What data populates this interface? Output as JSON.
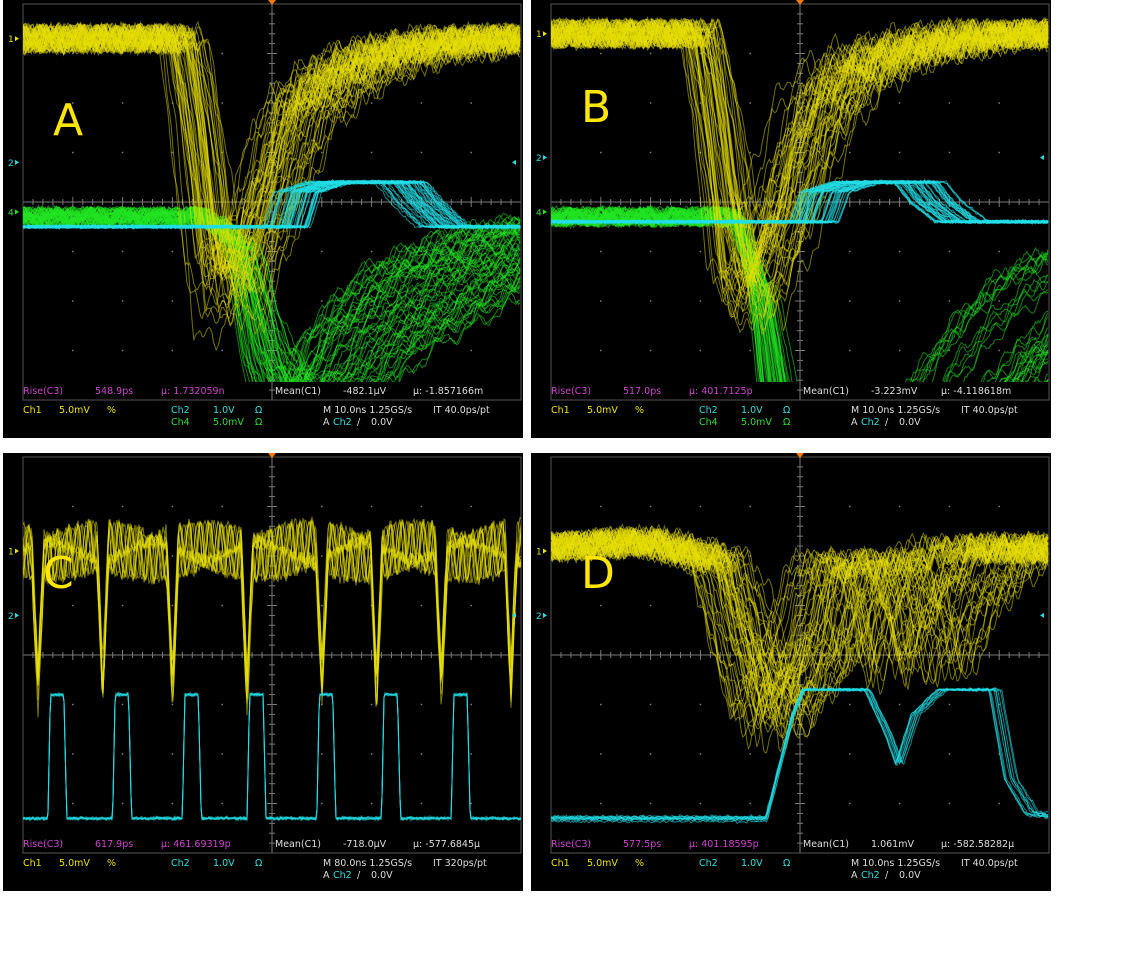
{
  "colors": {
    "ch1": "#e8e000",
    "ch2": "#22e0e8",
    "ch4": "#22e622",
    "measure": "#cc44cc",
    "grid": "#7a7a7a"
  },
  "panels": [
    {
      "id": "A",
      "letter": "A",
      "channels": [
        "1",
        "2",
        "4"
      ],
      "measure": {
        "label": "Rise(C3)",
        "value": "548.9ps",
        "mu_stat": "μ: 1.732059n",
        "mean_label": "Mean(C1)",
        "mean_value": "-482.1μV",
        "mean_mu": "μ: -1.857166m"
      },
      "ch1": {
        "label": "Ch1",
        "scale": "5.0mV",
        "flag": "%"
      },
      "ch2": {
        "label": "Ch2",
        "scale": "1.0V",
        "unit": "Ω"
      },
      "ch4": {
        "label": "Ch4",
        "scale": "5.0mV",
        "unit": "Ω"
      },
      "timebase": "M 10.0ns 1.25GS/s",
      "it": "IT 40.0ps/pt",
      "trigger": {
        "prefix": "A",
        "source": "Ch2",
        "slope": "/",
        "level": "0.0V"
      }
    },
    {
      "id": "B",
      "letter": "B",
      "channels": [
        "1",
        "2",
        "4"
      ],
      "measure": {
        "label": "Rise(C3)",
        "value": "517.0ps",
        "mu_stat": "μ: 401.7125p",
        "mean_label": "Mean(C1)",
        "mean_value": "-3.223mV",
        "mean_mu": "μ: -4.118618m"
      },
      "ch1": {
        "label": "Ch1",
        "scale": "5.0mV",
        "flag": "%"
      },
      "ch2": {
        "label": "Ch2",
        "scale": "1.0V",
        "unit": "Ω"
      },
      "ch4": {
        "label": "Ch4",
        "scale": "5.0mV",
        "unit": "Ω"
      },
      "timebase": "M 10.0ns 1.25GS/s",
      "it": "IT 40.0ps/pt",
      "trigger": {
        "prefix": "A",
        "source": "Ch2",
        "slope": "/",
        "level": "0.0V"
      }
    },
    {
      "id": "C",
      "letter": "C",
      "channels": [
        "1",
        "2"
      ],
      "measure": {
        "label": "Rise(C3)",
        "value": "617.9ps",
        "mu_stat": "μ: 461.69319p",
        "mean_label": "Mean(C1)",
        "mean_value": "-718.0μV",
        "mean_mu": "μ: -577.6845μ"
      },
      "ch1": {
        "label": "Ch1",
        "scale": "5.0mV",
        "flag": "%"
      },
      "ch2": {
        "label": "Ch2",
        "scale": "1.0V",
        "unit": "Ω"
      },
      "timebase": "M 80.0ns 1.25GS/s",
      "it": "IT 320ps/pt",
      "trigger": {
        "prefix": "A",
        "source": "Ch2",
        "slope": "/",
        "level": "0.0V"
      }
    },
    {
      "id": "D",
      "letter": "D",
      "channels": [
        "1",
        "2"
      ],
      "measure": {
        "label": "Rise(C3)",
        "value": "577.5ps",
        "mu_stat": "μ: 401.18595p",
        "mean_label": "Mean(C1)",
        "mean_value": "1.061mV",
        "mean_mu": "μ: -582.58282μ"
      },
      "ch1": {
        "label": "Ch1",
        "scale": "5.0mV",
        "flag": "%"
      },
      "ch2": {
        "label": "Ch2",
        "scale": "1.0V",
        "unit": "Ω"
      },
      "timebase": "M 10.0ns 1.25GS/s",
      "it": "IT 40.0ps/pt",
      "trigger": {
        "prefix": "A",
        "source": "Ch2",
        "slope": "/",
        "level": "0.0V"
      }
    }
  ],
  "chart_data": [
    {
      "type": "line",
      "panel": "A",
      "grid": true,
      "x_divisions": 10,
      "y_divisions": 8,
      "time_per_div_ns": 10,
      "series": [
        {
          "channel": "Ch1",
          "role": "detector pulse",
          "x_div": [
            0,
            2.8,
            3.0,
            3.3,
            3.7,
            4.2,
            4.6,
            5.2,
            6,
            7.5,
            10
          ],
          "y_div": [
            0,
            0,
            -1.5,
            -4.5,
            -4.8,
            -3.0,
            -1.5,
            -0.8,
            -0.3,
            0,
            0
          ]
        },
        {
          "channel": "Ch2",
          "role": "logic output",
          "x_div": [
            0,
            4.8,
            5.0,
            5.6,
            6.0,
            7.0,
            7.3,
            7.8,
            10
          ],
          "y_div": [
            -0.3,
            -0.3,
            0.4,
            0.6,
            0.6,
            0.6,
            0.2,
            -0.3,
            -0.3
          ]
        },
        {
          "channel": "Ch4",
          "role": "detector pulse",
          "x_div": [
            0,
            3.6,
            4.0,
            4.3,
            4.6,
            5.0,
            5.5,
            6.5,
            8,
            10
          ],
          "y_div": [
            0,
            0,
            -0.6,
            -2.8,
            -3.8,
            -3.5,
            -2.4,
            -1.2,
            -0.4,
            0
          ]
        }
      ]
    },
    {
      "type": "line",
      "panel": "B",
      "grid": true,
      "x_divisions": 10,
      "y_divisions": 8,
      "time_per_div_ns": 10,
      "series": [
        {
          "channel": "Ch1",
          "role": "detector pulse",
          "x_div": [
            0,
            2.6,
            2.8,
            3.1,
            3.4,
            3.9,
            4.3,
            4.8,
            5.5,
            7,
            10
          ],
          "y_div": [
            0,
            0,
            -1.5,
            -4.5,
            -5.0,
            -3.5,
            -1.8,
            -0.9,
            -0.4,
            0,
            0
          ]
        },
        {
          "channel": "Ch2",
          "role": "logic output",
          "x_div": [
            0,
            4.8,
            5.0,
            5.6,
            6.0,
            6.8,
            7.1,
            7.6,
            10
          ],
          "y_div": [
            -0.3,
            -0.3,
            0.3,
            0.5,
            0.5,
            0.5,
            0.1,
            -0.3,
            -0.3
          ]
        },
        {
          "channel": "Ch4",
          "role": "detector pulse",
          "x_div": [
            0,
            3.6,
            3.9,
            4.2,
            5.0,
            6.0,
            6.8,
            7.6,
            8.5,
            10
          ],
          "y_div": [
            0,
            0,
            -1.5,
            -5,
            -5,
            -5,
            -3.5,
            -2.2,
            -1.2,
            -0.4
          ]
        }
      ]
    },
    {
      "type": "line",
      "panel": "C",
      "grid": true,
      "x_divisions": 10,
      "y_divisions": 8,
      "time_per_div_ns": 80,
      "series": [
        {
          "channel": "Ch1",
          "role": "pulse train",
          "pulse_x_div": [
            0.3,
            1.6,
            3.0,
            4.5,
            6.0,
            7.1,
            8.4,
            9.8
          ],
          "baseline_div": 0,
          "pulse_depth_div": -3.8
        },
        {
          "channel": "Ch2",
          "role": "logic pulse train",
          "pulse_x_div": [
            0.6,
            1.9,
            3.3,
            4.6,
            6.0,
            7.3,
            8.7
          ],
          "low_div": -3.1,
          "high_div": -0.6,
          "pulse_width_div": 0.22
        }
      ]
    },
    {
      "type": "line",
      "panel": "D",
      "grid": true,
      "x_divisions": 10,
      "y_divisions": 8,
      "time_per_div_ns": 10,
      "series": [
        {
          "channel": "Ch1",
          "role": "double pulse",
          "x_div": [
            0,
            1.5,
            2.6,
            3.0,
            3.4,
            4.1,
            4.5,
            5.0,
            5.3,
            5.5,
            5.9,
            6.6,
            7.5,
            8.5,
            10
          ],
          "y_div": [
            0.1,
            0.2,
            -0.2,
            -1.8,
            -3.3,
            -1.8,
            -0.3,
            -0.2,
            -1.4,
            -2.3,
            -1.0,
            0,
            0.1,
            0,
            0.1
          ]
        },
        {
          "channel": "Ch2",
          "role": "logic output",
          "x_div": [
            0,
            4.3,
            4.8,
            5.0,
            6.2,
            6.6,
            6.8,
            7.1,
            7.6,
            8.6,
            8.9,
            9.3,
            10
          ],
          "y_div": [
            -3.1,
            -3.1,
            -1.0,
            -0.5,
            -0.5,
            -1.4,
            -2.0,
            -1.0,
            -0.5,
            -0.5,
            -2.3,
            -3.0,
            -3.1
          ]
        }
      ]
    }
  ]
}
